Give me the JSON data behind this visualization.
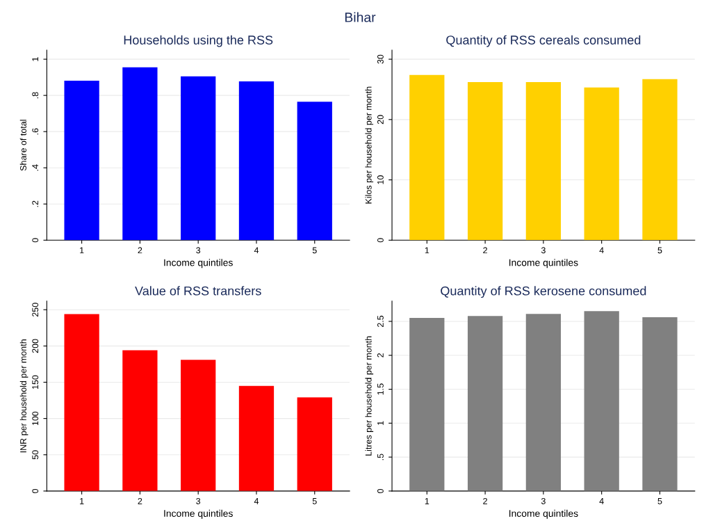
{
  "chart_data": [
    {
      "type": "bar",
      "annotations": [
        "Bihar"
      ],
      "title": "Households using the RSS",
      "xlabel": "Income quintiles",
      "ylabel": "Share of total",
      "categories": [
        "1",
        "2",
        "3",
        "4",
        "5"
      ],
      "values": [
        0.881,
        0.955,
        0.905,
        0.877,
        0.765
      ],
      "color": "#0000ff",
      "ylim": [
        0,
        1.05
      ],
      "yticks": [
        0,
        {
          "value": 0.2,
          "label": ".2"
        },
        {
          "value": 0.4,
          "label": ".4"
        },
        {
          "value": 0.6,
          "label": ".6"
        },
        {
          "value": 0.8,
          "label": ".8"
        },
        1
      ],
      "grid": "y"
    },
    {
      "type": "bar",
      "title": "Quantity of RSS cereals consumed",
      "xlabel": "Income quintiles",
      "ylabel": "Kilos per household per month",
      "categories": [
        "1",
        "2",
        "3",
        "4",
        "5"
      ],
      "values": [
        27.4,
        26.2,
        26.2,
        25.3,
        26.7
      ],
      "color": "#ffd000",
      "ylim": [
        0,
        31.5
      ],
      "yticks": [
        0,
        10,
        20,
        30
      ],
      "grid": "y"
    },
    {
      "type": "bar",
      "title": "Value of RSS transfers",
      "xlabel": "Income quintiles",
      "ylabel": "INR per household per month",
      "categories": [
        "1",
        "2",
        "3",
        "4",
        "5"
      ],
      "values": [
        244,
        194,
        181,
        145,
        129
      ],
      "color": "#ff0000",
      "ylim": [
        0,
        262
      ],
      "yticks": [
        0,
        50,
        100,
        150,
        200,
        250
      ],
      "grid": "y"
    },
    {
      "type": "bar",
      "title": "Quantity of RSS kerosene consumed",
      "xlabel": "Income quintiles",
      "ylabel": "Litres per household per month",
      "categories": [
        "1",
        "2",
        "3",
        "4",
        "5"
      ],
      "values": [
        2.55,
        2.58,
        2.61,
        2.65,
        2.56
      ],
      "color": "#808080",
      "ylim": [
        0,
        2.8
      ],
      "yticks": [
        0,
        {
          "value": 0.5,
          "label": ".5"
        },
        1,
        1.5,
        2,
        2.5
      ],
      "grid": "y"
    }
  ]
}
